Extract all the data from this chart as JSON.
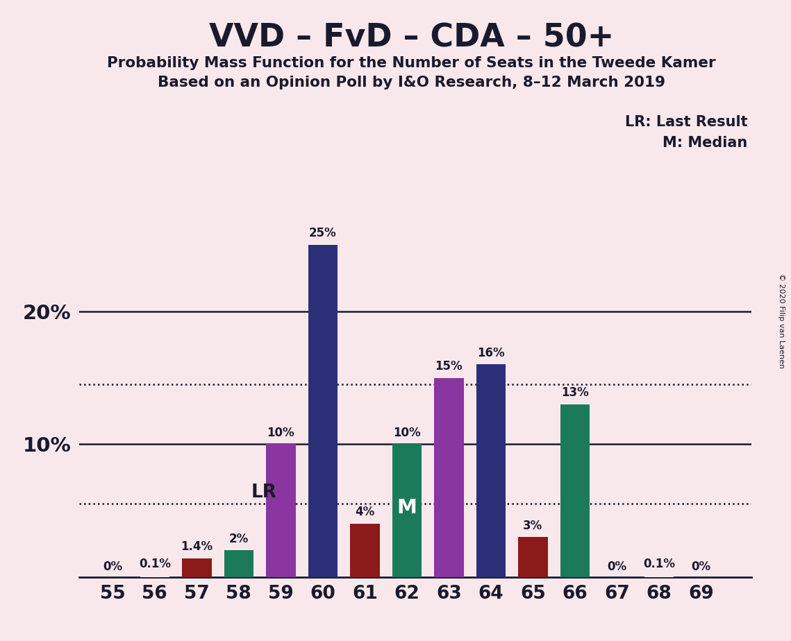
{
  "title": "VVD – FvD – CDA – 50+",
  "subtitle1": "Probability Mass Function for the Number of Seats in the Tweede Kamer",
  "subtitle2": "Based on an Opinion Poll by I&O Research, 8–12 March 2019",
  "copyright": "© 2020 Filip van Laenen",
  "seats": [
    55,
    56,
    57,
    58,
    59,
    60,
    61,
    62,
    63,
    64,
    65,
    66,
    67,
    68,
    69
  ],
  "values": [
    0.0,
    0.1,
    1.4,
    2.0,
    10.0,
    25.0,
    4.0,
    10.0,
    15.0,
    16.0,
    3.0,
    13.0,
    0.0,
    0.1,
    0.0
  ],
  "labels": [
    "0%",
    "0.1%",
    "1.4%",
    "2%",
    "10%",
    "25%",
    "4%",
    "10%",
    "15%",
    "16%",
    "3%",
    "13%",
    "0%",
    "0.1%",
    "0%"
  ],
  "colors": [
    "#f9e8eb",
    "#f9e8eb",
    "#8B1A1A",
    "#1a7a5a",
    "#8B35A0",
    "#2B2F77",
    "#8B1A1A",
    "#1a7a5a",
    "#8B35A0",
    "#2B2F77",
    "#8B1A1A",
    "#1a7a5a",
    "#f9e8eb",
    "#f9e8eb",
    "#f9e8eb"
  ],
  "lr_seat": 58.6,
  "lr_value": 5.5,
  "median_seat": 62,
  "lr_label": "LR",
  "median_label": "M",
  "legend_lr": "LR: Last Result",
  "legend_m": "M: Median",
  "background_color": "#f9e8eb",
  "dotted_lines": [
    5.5,
    14.5
  ],
  "ylim": [
    0,
    28
  ],
  "xlim": [
    54.2,
    70.2
  ]
}
